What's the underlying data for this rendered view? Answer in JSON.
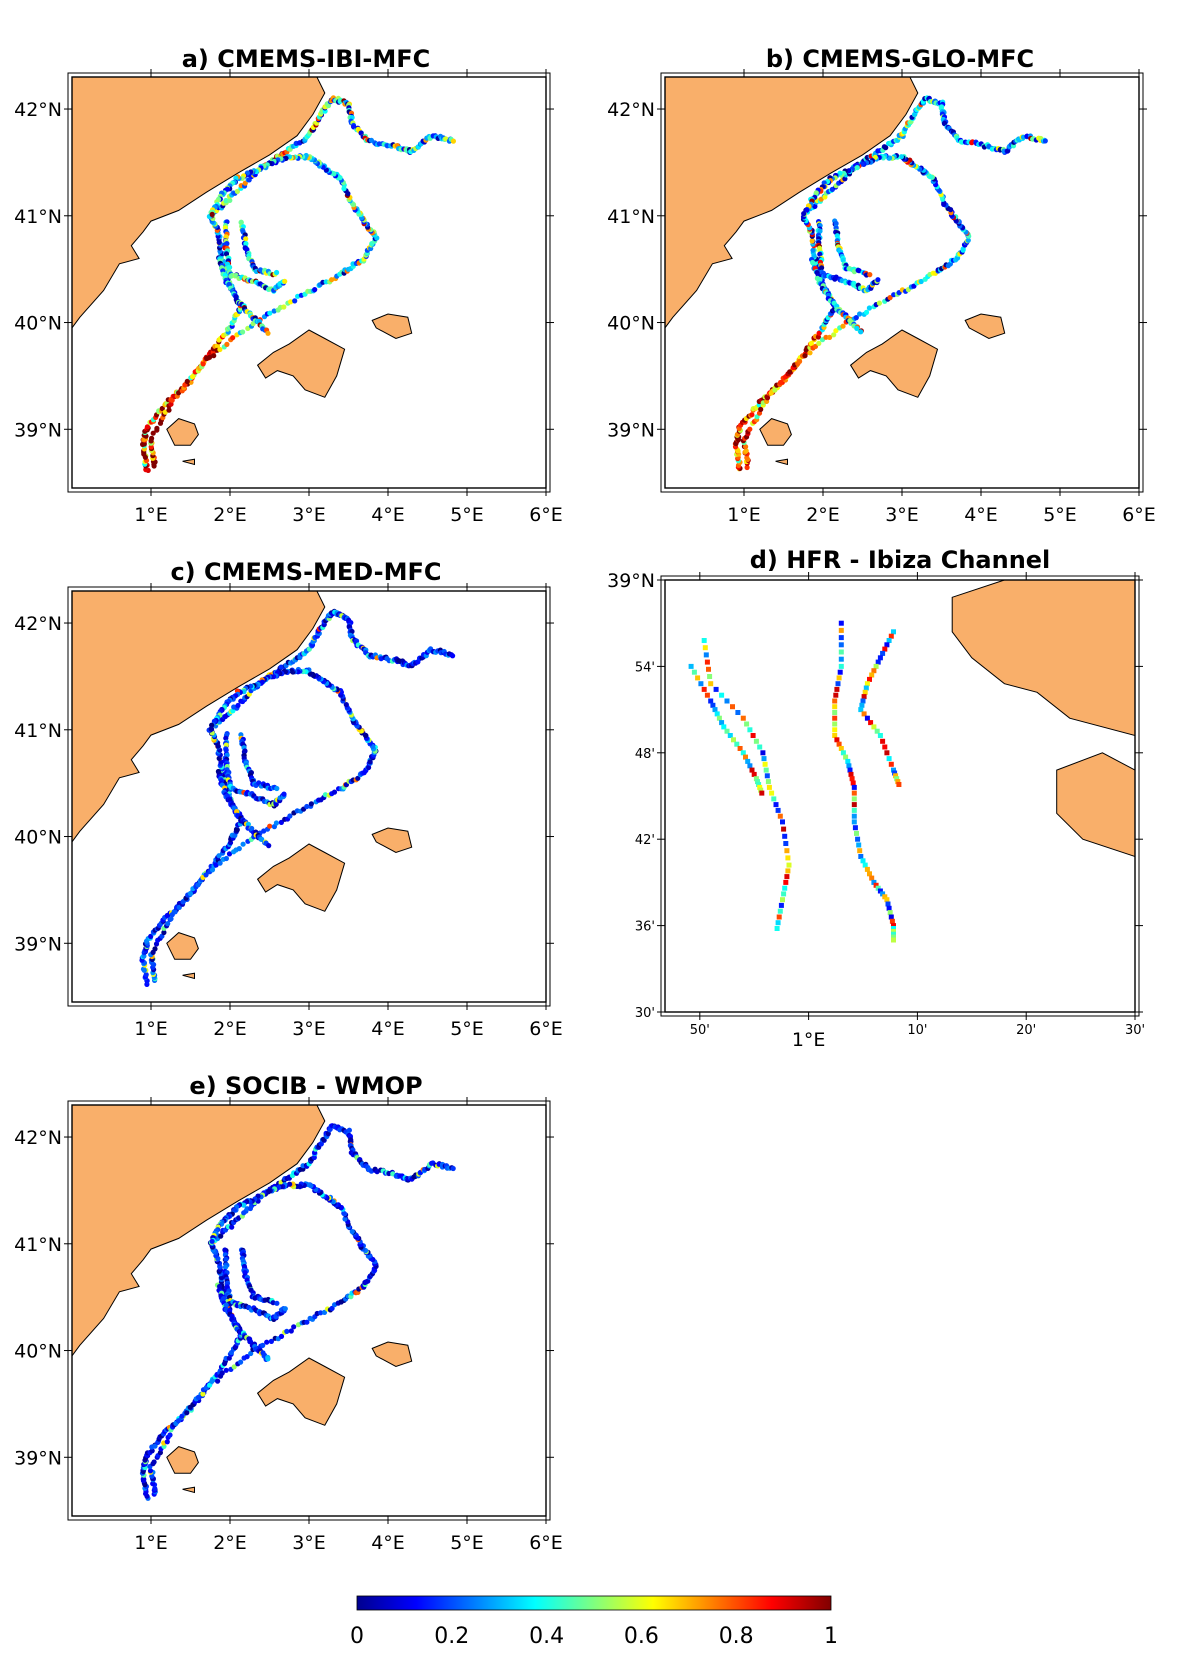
{
  "panels": [
    {
      "id": "a",
      "title": "a) CMEMS-IBI-MFC"
    },
    {
      "id": "b",
      "title": "b) CMEMS-GLO-MFC"
    },
    {
      "id": "c",
      "title": "c) CMEMS-MED-MFC"
    },
    {
      "id": "d",
      "title": "d) HFR - Ibiza Channel"
    },
    {
      "id": "e",
      "title": "e) SOCIB - WMOP"
    }
  ],
  "regional_axes": {
    "lon_ticks": [
      "1°E",
      "2°E",
      "3°E",
      "4°E",
      "5°E",
      "6°E"
    ],
    "lat_ticks": [
      "42°N",
      "41°N",
      "40°N",
      "39°N"
    ],
    "lon_range": [
      0,
      6
    ],
    "lat_range": [
      38.45,
      42.3
    ]
  },
  "zoom_axes": {
    "lon_ticks": [
      "50'",
      "1°E",
      "10'",
      "20'",
      "30'"
    ],
    "lat_ticks": [
      "39°N",
      "54'",
      "48'",
      "42'",
      "36'",
      "30'"
    ],
    "lon_range": [
      0.78,
      1.5
    ],
    "lat_range": [
      38.5,
      39.0
    ]
  },
  "colorbar": {
    "colormap": "jet",
    "min": 0,
    "max": 1,
    "ticks": [
      "0",
      "0.2",
      "0.4",
      "0.6",
      "0.8",
      "1"
    ]
  },
  "colors": {
    "land": "#f9af6a",
    "coast": "#000000",
    "frame": "#000000"
  },
  "chart_data": {
    "type": "scatter",
    "description_units": "longitude (°E), latitude (°N); colored by score 0–1",
    "drifter_routes": [
      [
        [
          0.95,
          38.62
        ],
        [
          0.9,
          38.85
        ],
        [
          0.95,
          39.02
        ],
        [
          1.2,
          39.25
        ],
        [
          1.5,
          39.45
        ],
        [
          1.75,
          39.7
        ],
        [
          2.0,
          39.95
        ],
        [
          2.15,
          40.15
        ],
        [
          2.0,
          40.35
        ],
        [
          1.9,
          40.6
        ],
        [
          1.85,
          40.85
        ],
        [
          1.75,
          41.0
        ],
        [
          2.05,
          41.2
        ],
        [
          2.4,
          41.45
        ],
        [
          2.7,
          41.6
        ],
        [
          3.0,
          41.75
        ],
        [
          3.15,
          41.95
        ],
        [
          3.3,
          42.1
        ],
        [
          3.5,
          42.05
        ],
        [
          3.55,
          41.85
        ],
        [
          3.75,
          41.7
        ],
        [
          4.1,
          41.65
        ],
        [
          4.3,
          41.6
        ],
        [
          4.55,
          41.75
        ],
        [
          4.85,
          41.7
        ]
      ],
      [
        [
          1.05,
          38.65
        ],
        [
          1.0,
          38.9
        ],
        [
          1.3,
          39.3
        ],
        [
          1.7,
          39.65
        ],
        [
          2.3,
          40.0
        ],
        [
          2.9,
          40.25
        ],
        [
          3.4,
          40.45
        ],
        [
          3.7,
          40.6
        ],
        [
          3.85,
          40.8
        ],
        [
          3.7,
          40.95
        ],
        [
          3.55,
          41.1
        ],
        [
          3.4,
          41.35
        ],
        [
          3.2,
          41.45
        ],
        [
          3.0,
          41.55
        ],
        [
          2.7,
          41.55
        ],
        [
          2.4,
          41.45
        ],
        [
          2.1,
          41.35
        ],
        [
          1.9,
          41.2
        ],
        [
          1.75,
          41.0
        ]
      ],
      [
        [
          1.95,
          40.95
        ],
        [
          1.95,
          40.7
        ],
        [
          2.0,
          40.45
        ],
        [
          2.25,
          40.4
        ],
        [
          2.55,
          40.3
        ],
        [
          2.7,
          40.4
        ]
      ],
      [
        [
          2.15,
          40.95
        ],
        [
          2.2,
          40.7
        ],
        [
          2.3,
          40.5
        ],
        [
          2.6,
          40.45
        ]
      ],
      [
        [
          1.85,
          40.6
        ],
        [
          1.95,
          40.4
        ],
        [
          2.1,
          40.2
        ],
        [
          2.3,
          40.05
        ],
        [
          2.5,
          39.9
        ]
      ]
    ],
    "hfr_tracks": [
      [
        [
          0.84,
          38.93
        ],
        [
          0.85,
          38.88
        ],
        [
          0.9,
          38.84
        ],
        [
          0.93,
          38.8
        ],
        [
          0.94,
          38.76
        ],
        [
          0.96,
          38.72
        ],
        [
          0.97,
          38.67
        ],
        [
          0.96,
          38.63
        ],
        [
          0.95,
          38.59
        ]
      ],
      [
        [
          0.82,
          38.9
        ],
        [
          0.85,
          38.86
        ],
        [
          0.87,
          38.83
        ],
        [
          0.9,
          38.8
        ],
        [
          0.92,
          38.77
        ],
        [
          0.93,
          38.75
        ]
      ],
      [
        [
          1.05,
          38.95
        ],
        [
          1.05,
          38.9
        ],
        [
          1.04,
          38.86
        ],
        [
          1.04,
          38.82
        ],
        [
          1.06,
          38.79
        ],
        [
          1.07,
          38.76
        ],
        [
          1.07,
          38.72
        ],
        [
          1.08,
          38.68
        ],
        [
          1.1,
          38.65
        ],
        [
          1.12,
          38.63
        ],
        [
          1.13,
          38.6
        ],
        [
          1.13,
          38.58
        ]
      ],
      [
        [
          1.13,
          38.94
        ],
        [
          1.11,
          38.91
        ],
        [
          1.09,
          38.88
        ],
        [
          1.08,
          38.85
        ],
        [
          1.11,
          38.82
        ],
        [
          1.13,
          38.78
        ],
        [
          1.14,
          38.76
        ]
      ]
    ]
  }
}
